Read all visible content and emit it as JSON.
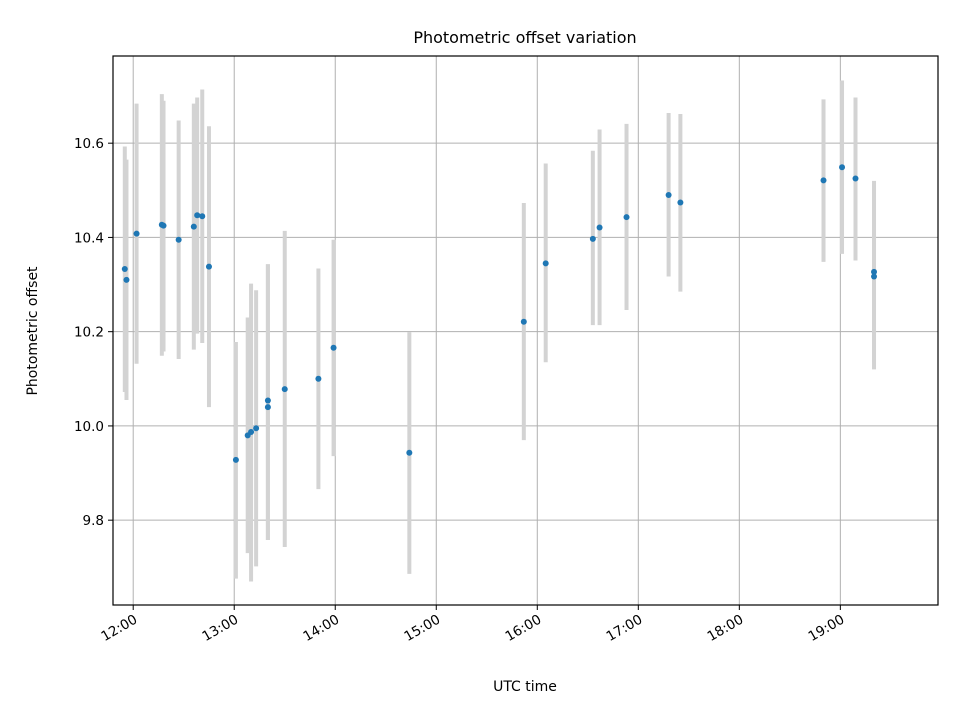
{
  "chart_data": {
    "type": "scatter",
    "title": "Photometric offset variation",
    "xlabel": "UTC time",
    "ylabel": "Photometric offset",
    "x_tick_labels": [
      "12:00",
      "13:00",
      "14:00",
      "15:00",
      "16:00",
      "17:00",
      "18:00",
      "19:00"
    ],
    "y_tick_labels": [
      "9.8",
      "10.0",
      "10.2",
      "10.4",
      "10.6"
    ],
    "xlim": [
      "11:48",
      "19:58"
    ],
    "ylim": [
      9.62,
      10.785
    ],
    "grid": true,
    "colors": {
      "point": "#1f77b4",
      "errorbar": "#d3d3d3",
      "grid": "#b0b0b0"
    },
    "points": [
      {
        "x": "11:55",
        "y": 10.333,
        "ylo": 10.072,
        "yhi": 10.593
      },
      {
        "x": "11:56",
        "y": 10.31,
        "ylo": 10.055,
        "yhi": 10.565
      },
      {
        "x": "12:02",
        "y": 10.408,
        "ylo": 10.132,
        "yhi": 10.684
      },
      {
        "x": "12:17",
        "y": 10.427,
        "ylo": 10.149,
        "yhi": 10.704
      },
      {
        "x": "12:18",
        "y": 10.425,
        "ylo": 10.158,
        "yhi": 10.69
      },
      {
        "x": "12:27",
        "y": 10.395,
        "ylo": 10.142,
        "yhi": 10.648
      },
      {
        "x": "12:36",
        "y": 10.423,
        "ylo": 10.162,
        "yhi": 10.684
      },
      {
        "x": "12:38",
        "y": 10.447,
        "ylo": 10.196,
        "yhi": 10.697
      },
      {
        "x": "12:41",
        "y": 10.445,
        "ylo": 10.176,
        "yhi": 10.714
      },
      {
        "x": "12:45",
        "y": 10.338,
        "ylo": 10.04,
        "yhi": 10.636
      },
      {
        "x": "13:01",
        "y": 9.928,
        "ylo": 9.676,
        "yhi": 10.178
      },
      {
        "x": "13:08",
        "y": 9.98,
        "ylo": 9.73,
        "yhi": 10.23
      },
      {
        "x": "13:10",
        "y": 9.987,
        "ylo": 9.67,
        "yhi": 10.302
      },
      {
        "x": "13:13",
        "y": 9.995,
        "ylo": 9.702,
        "yhi": 10.288
      },
      {
        "x": "13:20",
        "y": 10.054,
        "ylo": 9.758,
        "yhi": 10.343
      },
      {
        "x": "13:20",
        "y": 10.04,
        "ylo": 9.758,
        "yhi": 10.343
      },
      {
        "x": "13:30",
        "y": 10.078,
        "ylo": 9.743,
        "yhi": 10.414
      },
      {
        "x": "13:50",
        "y": 10.1,
        "ylo": 9.866,
        "yhi": 10.334
      },
      {
        "x": "13:59",
        "y": 10.166,
        "ylo": 9.936,
        "yhi": 10.395
      },
      {
        "x": "14:44",
        "y": 9.943,
        "ylo": 9.686,
        "yhi": 10.199
      },
      {
        "x": "15:52",
        "y": 10.221,
        "ylo": 9.97,
        "yhi": 10.473
      },
      {
        "x": "16:05",
        "y": 10.345,
        "ylo": 10.135,
        "yhi": 10.557
      },
      {
        "x": "16:33",
        "y": 10.397,
        "ylo": 10.214,
        "yhi": 10.584
      },
      {
        "x": "16:37",
        "y": 10.421,
        "ylo": 10.214,
        "yhi": 10.629
      },
      {
        "x": "16:53",
        "y": 10.443,
        "ylo": 10.246,
        "yhi": 10.641
      },
      {
        "x": "17:18",
        "y": 10.49,
        "ylo": 10.317,
        "yhi": 10.664
      },
      {
        "x": "17:25",
        "y": 10.474,
        "ylo": 10.285,
        "yhi": 10.662
      },
      {
        "x": "18:50",
        "y": 10.521,
        "ylo": 10.348,
        "yhi": 10.693
      },
      {
        "x": "19:01",
        "y": 10.549,
        "ylo": 10.365,
        "yhi": 10.733
      },
      {
        "x": "19:09",
        "y": 10.525,
        "ylo": 10.351,
        "yhi": 10.697
      },
      {
        "x": "19:20",
        "y": 10.327,
        "ylo": 10.135,
        "yhi": 10.52
      },
      {
        "x": "19:20",
        "y": 10.317,
        "ylo": 10.12,
        "yhi": 10.514
      }
    ]
  }
}
